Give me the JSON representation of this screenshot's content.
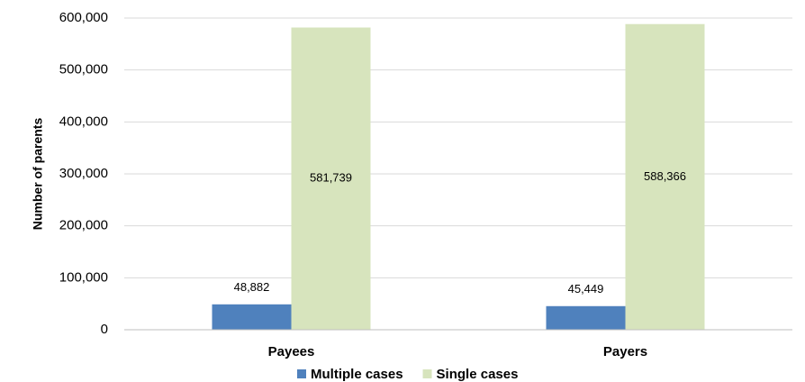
{
  "chart_data": {
    "type": "bar",
    "y_label": "Number of parents",
    "categories": [
      "Payees",
      "Payers"
    ],
    "series": [
      {
        "name": "Multiple cases",
        "color": "#4f81bd",
        "values": [
          48882,
          45449
        ],
        "value_labels": [
          "48,882",
          "45,449"
        ]
      },
      {
        "name": "Single cases",
        "color": "#d7e4bd",
        "values": [
          581739,
          588366
        ],
        "value_labels": [
          "581,739",
          "588,366"
        ]
      }
    ],
    "ylim": [
      0,
      600000
    ],
    "yticks": [
      0,
      {
        "value": 100000,
        "label": "100,000"
      },
      {
        "value": 200000,
        "label": "200,000"
      },
      {
        "value": 300000,
        "label": "300,000"
      },
      {
        "value": 400000,
        "label": "400,000"
      },
      {
        "value": 500000,
        "label": "500,000"
      },
      {
        "value": 600000,
        "label": "600,000"
      }
    ],
    "grid": true,
    "legend": "bottom"
  }
}
